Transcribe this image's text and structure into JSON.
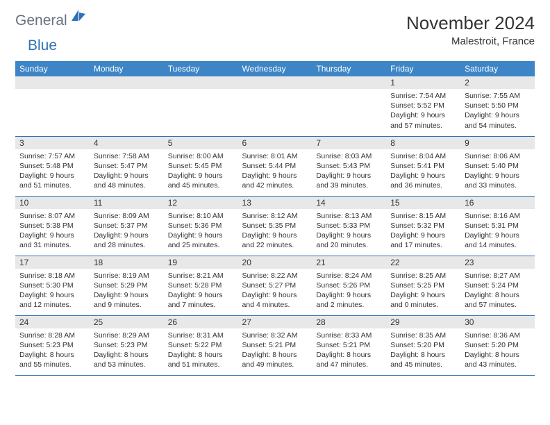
{
  "header": {
    "logo_general": "General",
    "logo_blue": "Blue",
    "month_title": "November 2024",
    "location": "Malestroit, France"
  },
  "colors": {
    "header_bg": "#3d85c6",
    "header_text": "#ffffff",
    "daynum_bg": "#e8e8e8",
    "row_border": "#2f72b9",
    "logo_general": "#6b7280",
    "logo_blue": "#2f72b9",
    "body_text": "#333333",
    "page_bg": "#ffffff"
  },
  "weekdays": [
    "Sunday",
    "Monday",
    "Tuesday",
    "Wednesday",
    "Thursday",
    "Friday",
    "Saturday"
  ],
  "weeks": [
    [
      null,
      null,
      null,
      null,
      null,
      {
        "n": "1",
        "sunrise": "7:54 AM",
        "sunset": "5:52 PM",
        "daylight": "9 hours and 57 minutes."
      },
      {
        "n": "2",
        "sunrise": "7:55 AM",
        "sunset": "5:50 PM",
        "daylight": "9 hours and 54 minutes."
      }
    ],
    [
      {
        "n": "3",
        "sunrise": "7:57 AM",
        "sunset": "5:48 PM",
        "daylight": "9 hours and 51 minutes."
      },
      {
        "n": "4",
        "sunrise": "7:58 AM",
        "sunset": "5:47 PM",
        "daylight": "9 hours and 48 minutes."
      },
      {
        "n": "5",
        "sunrise": "8:00 AM",
        "sunset": "5:45 PM",
        "daylight": "9 hours and 45 minutes."
      },
      {
        "n": "6",
        "sunrise": "8:01 AM",
        "sunset": "5:44 PM",
        "daylight": "9 hours and 42 minutes."
      },
      {
        "n": "7",
        "sunrise": "8:03 AM",
        "sunset": "5:43 PM",
        "daylight": "9 hours and 39 minutes."
      },
      {
        "n": "8",
        "sunrise": "8:04 AM",
        "sunset": "5:41 PM",
        "daylight": "9 hours and 36 minutes."
      },
      {
        "n": "9",
        "sunrise": "8:06 AM",
        "sunset": "5:40 PM",
        "daylight": "9 hours and 33 minutes."
      }
    ],
    [
      {
        "n": "10",
        "sunrise": "8:07 AM",
        "sunset": "5:38 PM",
        "daylight": "9 hours and 31 minutes."
      },
      {
        "n": "11",
        "sunrise": "8:09 AM",
        "sunset": "5:37 PM",
        "daylight": "9 hours and 28 minutes."
      },
      {
        "n": "12",
        "sunrise": "8:10 AM",
        "sunset": "5:36 PM",
        "daylight": "9 hours and 25 minutes."
      },
      {
        "n": "13",
        "sunrise": "8:12 AM",
        "sunset": "5:35 PM",
        "daylight": "9 hours and 22 minutes."
      },
      {
        "n": "14",
        "sunrise": "8:13 AM",
        "sunset": "5:33 PM",
        "daylight": "9 hours and 20 minutes."
      },
      {
        "n": "15",
        "sunrise": "8:15 AM",
        "sunset": "5:32 PM",
        "daylight": "9 hours and 17 minutes."
      },
      {
        "n": "16",
        "sunrise": "8:16 AM",
        "sunset": "5:31 PM",
        "daylight": "9 hours and 14 minutes."
      }
    ],
    [
      {
        "n": "17",
        "sunrise": "8:18 AM",
        "sunset": "5:30 PM",
        "daylight": "9 hours and 12 minutes."
      },
      {
        "n": "18",
        "sunrise": "8:19 AM",
        "sunset": "5:29 PM",
        "daylight": "9 hours and 9 minutes."
      },
      {
        "n": "19",
        "sunrise": "8:21 AM",
        "sunset": "5:28 PM",
        "daylight": "9 hours and 7 minutes."
      },
      {
        "n": "20",
        "sunrise": "8:22 AM",
        "sunset": "5:27 PM",
        "daylight": "9 hours and 4 minutes."
      },
      {
        "n": "21",
        "sunrise": "8:24 AM",
        "sunset": "5:26 PM",
        "daylight": "9 hours and 2 minutes."
      },
      {
        "n": "22",
        "sunrise": "8:25 AM",
        "sunset": "5:25 PM",
        "daylight": "9 hours and 0 minutes."
      },
      {
        "n": "23",
        "sunrise": "8:27 AM",
        "sunset": "5:24 PM",
        "daylight": "8 hours and 57 minutes."
      }
    ],
    [
      {
        "n": "24",
        "sunrise": "8:28 AM",
        "sunset": "5:23 PM",
        "daylight": "8 hours and 55 minutes."
      },
      {
        "n": "25",
        "sunrise": "8:29 AM",
        "sunset": "5:23 PM",
        "daylight": "8 hours and 53 minutes."
      },
      {
        "n": "26",
        "sunrise": "8:31 AM",
        "sunset": "5:22 PM",
        "daylight": "8 hours and 51 minutes."
      },
      {
        "n": "27",
        "sunrise": "8:32 AM",
        "sunset": "5:21 PM",
        "daylight": "8 hours and 49 minutes."
      },
      {
        "n": "28",
        "sunrise": "8:33 AM",
        "sunset": "5:21 PM",
        "daylight": "8 hours and 47 minutes."
      },
      {
        "n": "29",
        "sunrise": "8:35 AM",
        "sunset": "5:20 PM",
        "daylight": "8 hours and 45 minutes."
      },
      {
        "n": "30",
        "sunrise": "8:36 AM",
        "sunset": "5:20 PM",
        "daylight": "8 hours and 43 minutes."
      }
    ]
  ],
  "labels": {
    "sunrise": "Sunrise: ",
    "sunset": "Sunset: ",
    "daylight": "Daylight: "
  }
}
